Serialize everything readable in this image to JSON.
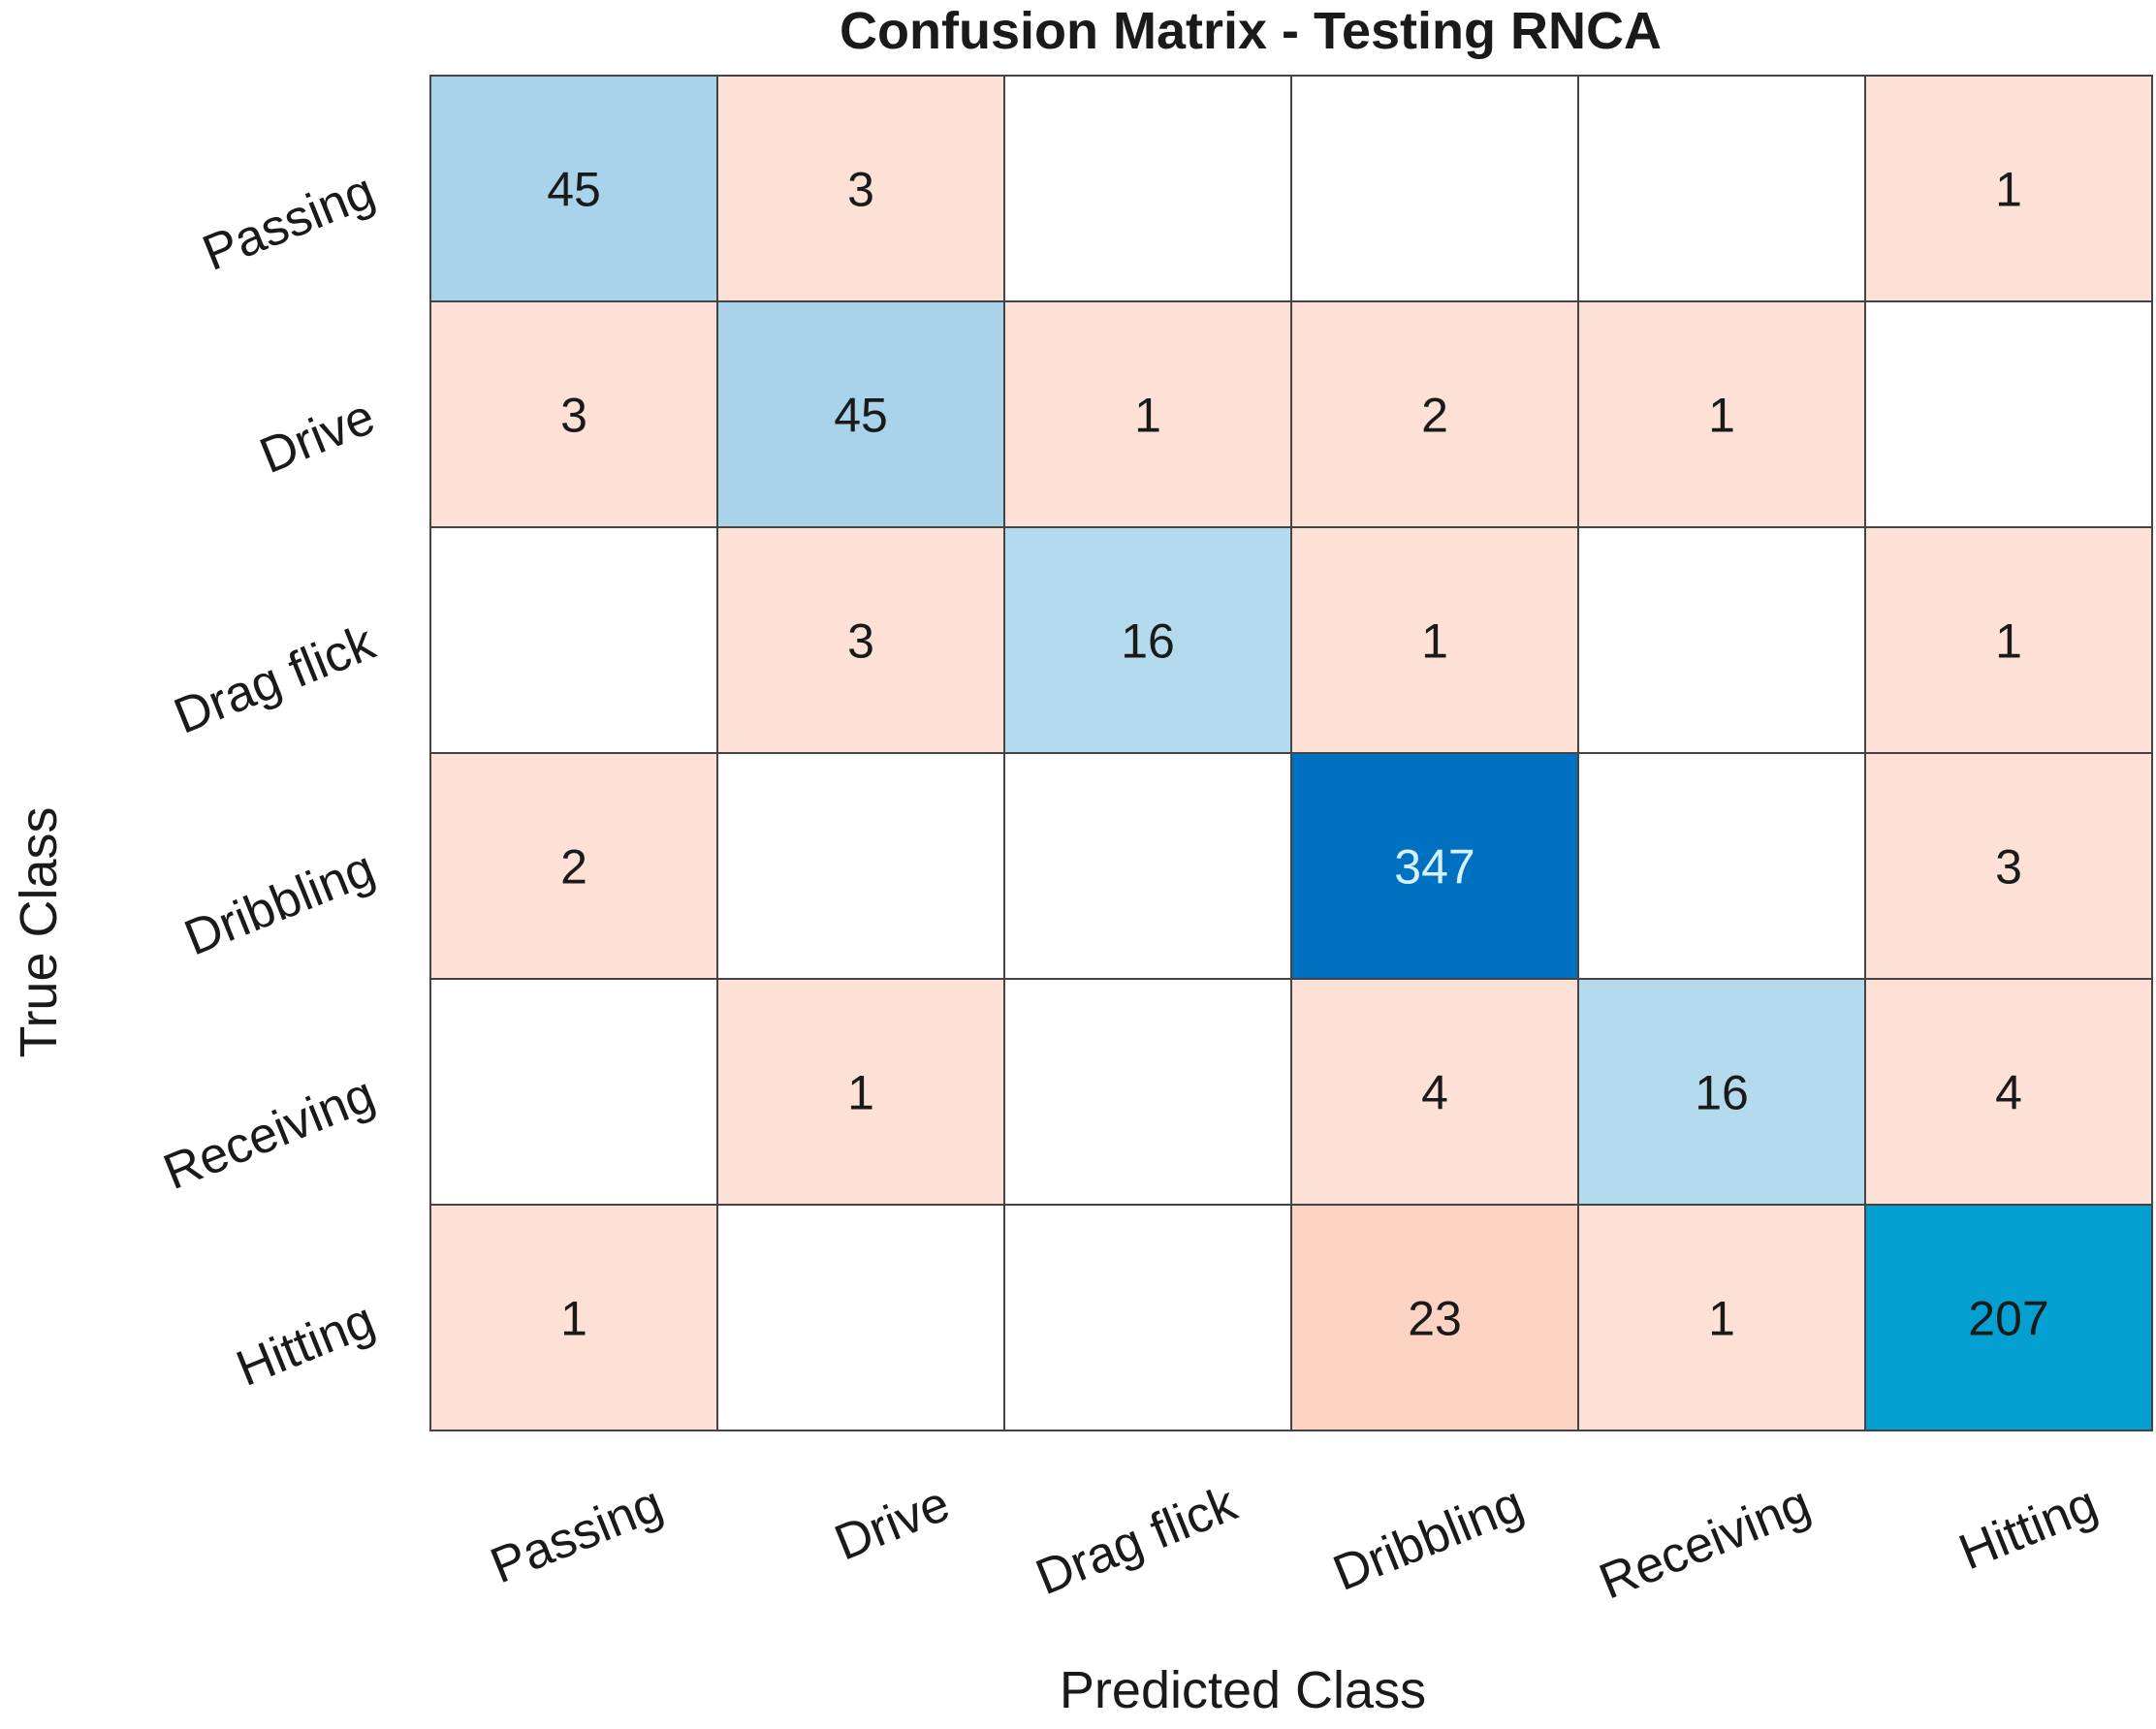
{
  "chart_data": {
    "type": "heatmap",
    "title": "Confusion Matrix - Testing RNCA",
    "xlabel": "Predicted Class",
    "ylabel": "True Class",
    "classes": [
      "Passing",
      "Drive",
      "Drag flick",
      "Dribbling",
      "Receiving",
      "Hitting"
    ],
    "matrix": [
      [
        45,
        3,
        null,
        null,
        null,
        1
      ],
      [
        3,
        45,
        1,
        2,
        1,
        null
      ],
      [
        null,
        3,
        16,
        1,
        null,
        1
      ],
      [
        2,
        null,
        null,
        347,
        null,
        3
      ],
      [
        null,
        1,
        null,
        4,
        16,
        4
      ],
      [
        1,
        null,
        null,
        23,
        1,
        207
      ]
    ],
    "colors": {
      "diag_light": "#a8d3ea",
      "diag_lighter": "#b4daee",
      "diag_mid": "#05a0d2",
      "diag_dark": "#0071c0",
      "off_diag": "#fde1d7",
      "off_diag_strong": "#fdd3c3",
      "empty": "#ffffff",
      "grid": "#444444",
      "text_dark": "#1a1a1a",
      "text_light": "#d6f1fb"
    }
  }
}
